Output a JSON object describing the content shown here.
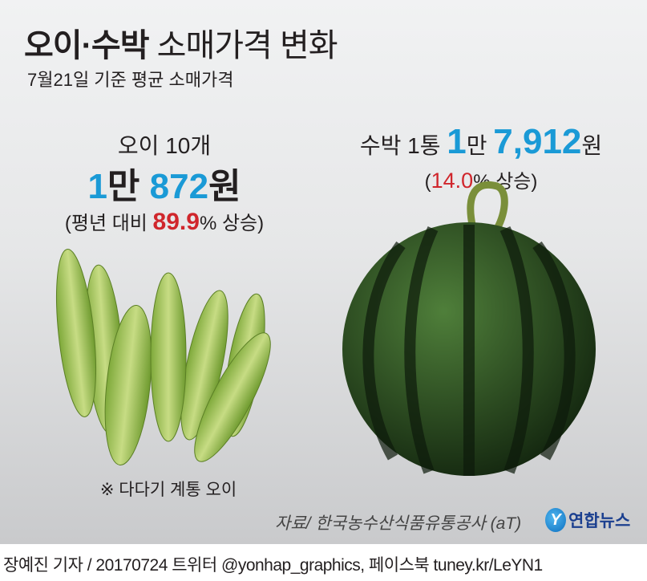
{
  "header": {
    "title_bold": "오이·수박",
    "title_rest": "소매가격 변화",
    "subtitle": "7월21일 기준 평균 소매가격"
  },
  "cucumber": {
    "label": "오이 10개",
    "price_man": "1",
    "price_man_unit": "만",
    "price_rest": "872",
    "price_unit": "원",
    "change_prefix": "(평년 대비",
    "change_value": "89.9",
    "change_suffix": "% 상승)",
    "note": "※ 다다기 계통 오이"
  },
  "watermelon": {
    "label": "수박 1통",
    "price_man": "1",
    "price_man_unit": "만",
    "price_rest": "7,912",
    "price_unit": "원",
    "change_prefix": "(",
    "change_value": "14.0",
    "change_suffix": "% 상승)"
  },
  "source": "자료/ 한국농수산식품유통공사 (aT)",
  "logo": {
    "text": "연합뉴스",
    "mark": "Y"
  },
  "footer": "장예진 기자 / 20170724 트위터 @yonhap_graphics, 페이스북 tuney.kr/LeYN1",
  "colors": {
    "price_blue": "#1a9ad6",
    "change_red": "#d0262c",
    "logo_blue": "#1b3f8f"
  }
}
